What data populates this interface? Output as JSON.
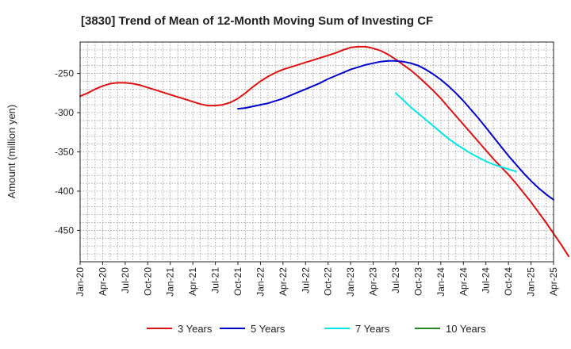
{
  "chart_data": {
    "type": "line",
    "title": "[3830]  Trend of Mean of 12-Month Moving Sum of Investing CF",
    "xlabel": "",
    "ylabel": "Amount (million yen)",
    "ylim": [
      -490,
      -210
    ],
    "yticks": [
      -250,
      -300,
      -350,
      -400,
      -450
    ],
    "x_start": "Jan-20",
    "x_end": "Apr-25",
    "xticks": [
      "Jan-20",
      "Apr-20",
      "Jul-20",
      "Oct-20",
      "Jan-21",
      "Apr-21",
      "Jul-21",
      "Oct-21",
      "Jan-22",
      "Apr-22",
      "Jul-22",
      "Oct-22",
      "Jan-23",
      "Apr-23",
      "Jul-23",
      "Oct-23",
      "Jan-24",
      "Apr-24",
      "Jul-24",
      "Oct-24",
      "Jan-25",
      "Apr-25"
    ],
    "grid": true,
    "legend_position": "bottom",
    "series": [
      {
        "name": "3 Years",
        "color": "#dd1111",
        "start_month": 0,
        "values": [
          -279,
          -275,
          -270,
          -266,
          -263,
          -262,
          -262,
          -263,
          -265,
          -268,
          -271,
          -274,
          -277,
          -280,
          -283,
          -286,
          -289,
          -291,
          -291,
          -290,
          -287,
          -282,
          -275,
          -267,
          -260,
          -254,
          -249,
          -245,
          -242,
          -239,
          -236,
          -233,
          -230,
          -227,
          -224,
          -220,
          -217,
          -216,
          -216,
          -218,
          -221,
          -226,
          -232,
          -239,
          -246,
          -254,
          -263,
          -272,
          -282,
          -293,
          -304,
          -315,
          -326,
          -337,
          -348,
          -359,
          -369,
          -379,
          -390,
          -402,
          -414,
          -427,
          -440,
          -454,
          -468,
          -483
        ]
      },
      {
        "name": "5 Years",
        "color": "#0000cc",
        "start_month": 21,
        "values": [
          -295,
          -294,
          -292,
          -290,
          -288,
          -285,
          -282,
          -278,
          -274,
          -270,
          -266,
          -262,
          -257,
          -253,
          -249,
          -245,
          -242,
          -239,
          -237,
          -235,
          -234,
          -234,
          -235,
          -237,
          -240,
          -245,
          -251,
          -258,
          -266,
          -275,
          -285,
          -296,
          -307,
          -319,
          -331,
          -343,
          -355,
          -366,
          -377,
          -387,
          -396,
          -404,
          -411
        ]
      },
      {
        "name": "7 Years",
        "color": "#00e5e5",
        "start_month": 42,
        "values": [
          -275,
          -284,
          -293,
          -301,
          -309,
          -317,
          -325,
          -333,
          -340,
          -346,
          -352,
          -357,
          -362,
          -366,
          -369,
          -372,
          -375
        ]
      },
      {
        "name": "10 Years",
        "color": "#228822",
        "start_month": 0,
        "values": []
      }
    ]
  }
}
